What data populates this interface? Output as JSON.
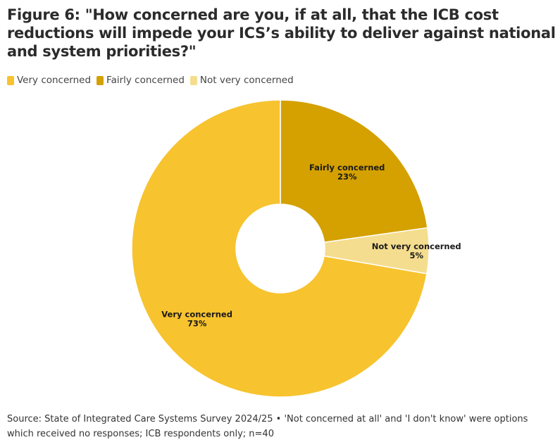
{
  "chart_data": {
    "type": "pie",
    "title": "Figure 6: \"How concerned are you, if at all, that the ICB cost reductions will impede your ICS’s ability to deliver against national and system priorities?\"",
    "categories": [
      "Very concerned",
      "Fairly concerned",
      "Not very concerned"
    ],
    "values": [
      73,
      23,
      5
    ],
    "value_labels": [
      "73%",
      "23%",
      "5%"
    ],
    "colors": [
      "#f7c32e",
      "#d4a100",
      "#f5dd8f"
    ],
    "donut": true,
    "legend_position": "top-left",
    "source": "Source: State of Integrated Care Systems Survey 2024/25 • 'Not concerned at all' and 'I don't know' were options which received no responses; ICB respondents only; n=40"
  }
}
